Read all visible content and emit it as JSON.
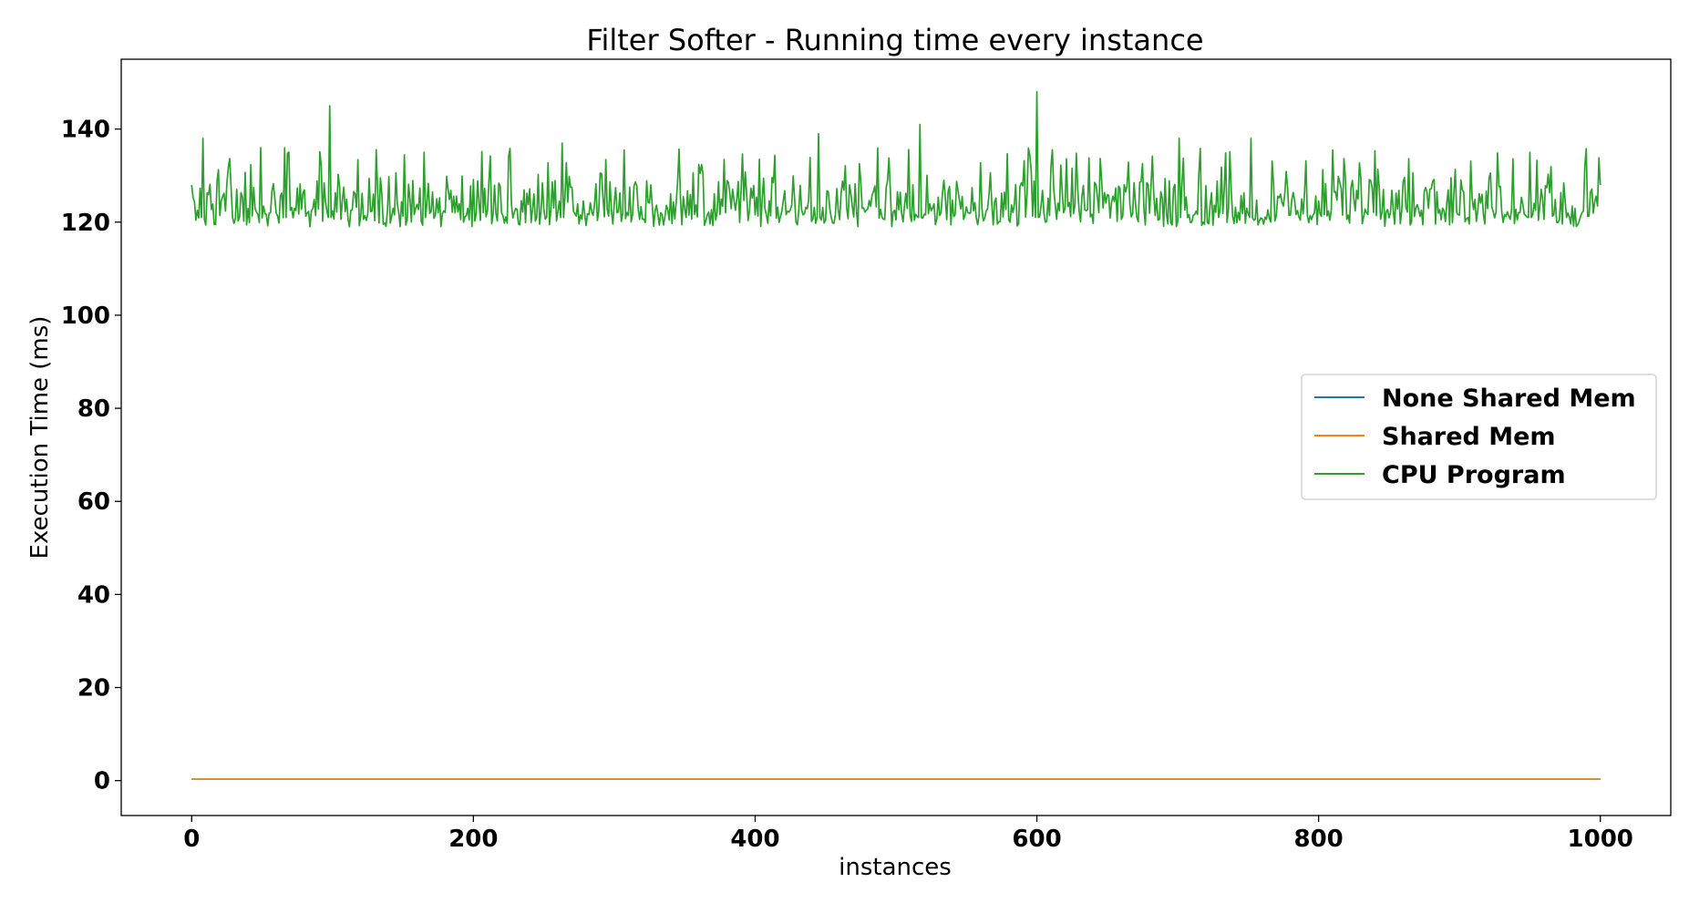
{
  "chart_data": {
    "type": "line",
    "title": "Filter Softer - Running time every instance",
    "xlabel": "instances",
    "ylabel": "Execution Time (ms)",
    "xlim": [
      -50,
      1050
    ],
    "ylim": [
      -7.5,
      155
    ],
    "xticks": [
      0,
      200,
      400,
      600,
      800,
      1000
    ],
    "yticks": [
      0,
      20,
      40,
      60,
      80,
      100,
      120,
      140
    ],
    "grid": false,
    "legend_position": "center-right",
    "x_range": [
      0,
      1000
    ],
    "series": [
      {
        "name": "None Shared Mem",
        "color": "#1f77b4",
        "value_constant": 0.3
      },
      {
        "name": "Shared Mem",
        "color": "#ff7f0e",
        "value_constant": 0.3
      },
      {
        "name": "CPU Program",
        "color": "#2ca02c",
        "baseline": 120,
        "typical_range": [
          118,
          132
        ],
        "start_value": 128,
        "end_value": 128,
        "peaks": [
          {
            "x": 8,
            "y": 138
          },
          {
            "x": 49,
            "y": 136
          },
          {
            "x": 66,
            "y": 136
          },
          {
            "x": 98,
            "y": 145
          },
          {
            "x": 165,
            "y": 135
          },
          {
            "x": 263,
            "y": 137
          },
          {
            "x": 445,
            "y": 139
          },
          {
            "x": 517,
            "y": 141
          },
          {
            "x": 600,
            "y": 148
          },
          {
            "x": 701,
            "y": 138
          },
          {
            "x": 752,
            "y": 138
          },
          {
            "x": 950,
            "y": 135
          }
        ]
      }
    ]
  }
}
